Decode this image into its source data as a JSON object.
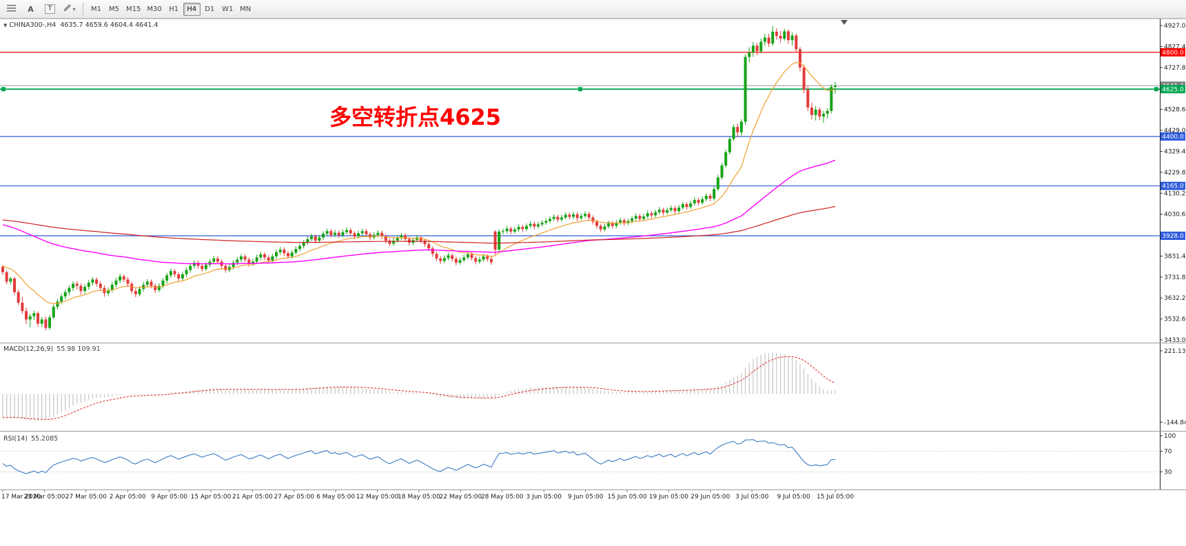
{
  "toolbar": {
    "buttons": [
      {
        "name": "indicators",
        "icon": "hamburger-icon"
      },
      {
        "name": "cursor",
        "label": "A"
      },
      {
        "name": "text",
        "label": "T"
      },
      {
        "name": "draw",
        "icon": "pencil-icon"
      }
    ],
    "timeframes": [
      "M1",
      "M5",
      "M15",
      "M30",
      "H1",
      "H4",
      "D1",
      "W1",
      "MN"
    ],
    "active_timeframe": "H4"
  },
  "chart_data": {
    "type": "candlestick",
    "header": {
      "symbol": "CHINA300-,H4",
      "ohlc": "4635.7 4659.6 4604.4 4641.4"
    },
    "annotation": {
      "text": "多空转折点4625",
      "color": "#FF0000"
    },
    "colors": {
      "up": "#17a317",
      "down": "#e23b3b",
      "bid_line": "#9a9a9a",
      "scale_text": "#1a1a1a"
    },
    "ylim": [
      3420,
      4957
    ],
    "price_ticks": [
      "4927.0",
      "4827.4",
      "4727.8",
      "4628.2",
      "4528.6",
      "4429.0",
      "4329.4",
      "4229.8",
      "4130.2",
      "4030.6",
      "3931.0",
      "3831.4",
      "3731.8",
      "3632.2",
      "3532.6",
      "3433.0"
    ],
    "levels": [
      {
        "price": 4800.0,
        "label": "4800.0",
        "color": "#ff0000",
        "selected": false
      },
      {
        "price": 4625.0,
        "label": "4625.0",
        "color": "#00a651",
        "selected": true
      },
      {
        "price": 4400.0,
        "label": "4400.0",
        "color": "#2e5bda",
        "selected": false
      },
      {
        "price": 4165.0,
        "label": "4165.0",
        "color": "#2e5bda",
        "selected": false
      },
      {
        "price": 3928.0,
        "label": "3928.0",
        "color": "#2e5bda",
        "selected": false
      }
    ],
    "bid": {
      "price": 4641.4,
      "label": "4641.4",
      "badge_color": "#7f7f7f"
    },
    "moving_averages": [
      {
        "name": "fast-ma",
        "period": 16,
        "init": 3790,
        "color": "#f0a030",
        "width": 1.2
      },
      {
        "name": "mid-ma",
        "period": 100,
        "init": 3985,
        "color": "#ff00ff",
        "width": 1.4
      },
      {
        "name": "slow-ma",
        "period": 300,
        "init": 4005,
        "color": "#cc2222",
        "width": 1.2
      }
    ],
    "time_labels": [
      "17 Mar 2020",
      "23 Mar 05:00",
      "27 Mar 05:00",
      "2 Apr 05:00",
      "9 Apr 05:00",
      "15 Apr 05:00",
      "21 Apr 05:00",
      "27 Apr 05:00",
      "6 May 05:00",
      "12 May 05:00",
      "18 May 05:00",
      "22 May 05:00",
      "28 May 05:00",
      "3 Jun 05:00",
      "9 Jun 05:00",
      "15 Jun 05:00",
      "19 Jun 05:00",
      "29 Jun 05:00",
      "3 Jul 05:00",
      "9 Jul 05:00",
      "15 Jul 05:00"
    ],
    "candles": [
      [
        3780,
        3790,
        3742,
        3755
      ],
      [
        3755,
        3762,
        3698,
        3710
      ],
      [
        3710,
        3732,
        3695,
        3725
      ],
      [
        3725,
        3732,
        3648,
        3660
      ],
      [
        3660,
        3672,
        3598,
        3610
      ],
      [
        3610,
        3638,
        3558,
        3570
      ],
      [
        3570,
        3588,
        3508,
        3530
      ],
      [
        3530,
        3558,
        3492,
        3545
      ],
      [
        3545,
        3572,
        3528,
        3560
      ],
      [
        3560,
        3568,
        3496,
        3510
      ],
      [
        3510,
        3542,
        3495,
        3530
      ],
      [
        3530,
        3545,
        3478,
        3490
      ],
      [
        3490,
        3552,
        3482,
        3540
      ],
      [
        3540,
        3602,
        3532,
        3590
      ],
      [
        3590,
        3628,
        3578,
        3615
      ],
      [
        3615,
        3652,
        3602,
        3640
      ],
      [
        3640,
        3672,
        3625,
        3660
      ],
      [
        3660,
        3692,
        3645,
        3680
      ],
      [
        3680,
        3712,
        3665,
        3700
      ],
      [
        3700,
        3712,
        3672,
        3690
      ],
      [
        3690,
        3702,
        3648,
        3665
      ],
      [
        3665,
        3698,
        3652,
        3685
      ],
      [
        3685,
        3718,
        3672,
        3705
      ],
      [
        3705,
        3732,
        3692,
        3720
      ],
      [
        3720,
        3730,
        3685,
        3700
      ],
      [
        3700,
        3712,
        3665,
        3680
      ],
      [
        3680,
        3692,
        3638,
        3655
      ],
      [
        3655,
        3682,
        3642,
        3670
      ],
      [
        3670,
        3708,
        3658,
        3695
      ],
      [
        3695,
        3728,
        3682,
        3715
      ],
      [
        3715,
        3748,
        3702,
        3735
      ],
      [
        3735,
        3745,
        3708,
        3720
      ],
      [
        3720,
        3732,
        3685,
        3700
      ],
      [
        3700,
        3710,
        3652,
        3665
      ],
      [
        3665,
        3678,
        3636,
        3650
      ],
      [
        3650,
        3688,
        3640,
        3675
      ],
      [
        3675,
        3708,
        3662,
        3695
      ],
      [
        3695,
        3722,
        3682,
        3710
      ],
      [
        3710,
        3720,
        3678,
        3690
      ],
      [
        3690,
        3702,
        3656,
        3670
      ],
      [
        3670,
        3702,
        3660,
        3690
      ],
      [
        3690,
        3728,
        3678,
        3715
      ],
      [
        3715,
        3752,
        3702,
        3740
      ],
      [
        3740,
        3772,
        3728,
        3760
      ],
      [
        3760,
        3770,
        3732,
        3745
      ],
      [
        3745,
        3755,
        3712,
        3725
      ],
      [
        3725,
        3758,
        3715,
        3745
      ],
      [
        3745,
        3778,
        3732,
        3765
      ],
      [
        3765,
        3798,
        3752,
        3785
      ],
      [
        3785,
        3812,
        3772,
        3800
      ],
      [
        3800,
        3810,
        3772,
        3785
      ],
      [
        3785,
        3795,
        3758,
        3770
      ],
      [
        3770,
        3802,
        3760,
        3790
      ],
      [
        3790,
        3818,
        3778,
        3805
      ],
      [
        3805,
        3832,
        3792,
        3820
      ],
      [
        3820,
        3830,
        3792,
        3805
      ],
      [
        3805,
        3815,
        3772,
        3785
      ],
      [
        3785,
        3795,
        3752,
        3765
      ],
      [
        3765,
        3792,
        3755,
        3780
      ],
      [
        3780,
        3812,
        3768,
        3800
      ],
      [
        3800,
        3828,
        3788,
        3815
      ],
      [
        3815,
        3842,
        3802,
        3830
      ],
      [
        3830,
        3840,
        3802,
        3815
      ],
      [
        3815,
        3825,
        3782,
        3795
      ],
      [
        3795,
        3818,
        3785,
        3805
      ],
      [
        3805,
        3838,
        3795,
        3825
      ],
      [
        3825,
        3852,
        3812,
        3840
      ],
      [
        3840,
        3850,
        3812,
        3825
      ],
      [
        3825,
        3835,
        3798,
        3810
      ],
      [
        3810,
        3842,
        3800,
        3830
      ],
      [
        3830,
        3862,
        3818,
        3850
      ],
      [
        3850,
        3875,
        3838,
        3862
      ],
      [
        3862,
        3872,
        3832,
        3845
      ],
      [
        3845,
        3855,
        3818,
        3830
      ],
      [
        3830,
        3860,
        3820,
        3848
      ],
      [
        3848,
        3878,
        3838,
        3865
      ],
      [
        3865,
        3892,
        3855,
        3880
      ],
      [
        3880,
        3908,
        3868,
        3895
      ],
      [
        3895,
        3925,
        3885,
        3912
      ],
      [
        3912,
        3938,
        3902,
        3925
      ],
      [
        3925,
        3935,
        3892,
        3905
      ],
      [
        3905,
        3932,
        3895,
        3920
      ],
      [
        3920,
        3950,
        3908,
        3938
      ],
      [
        3938,
        3962,
        3928,
        3950
      ],
      [
        3950,
        3960,
        3920,
        3932
      ],
      [
        3932,
        3955,
        3922,
        3942
      ],
      [
        3942,
        3952,
        3918,
        3930
      ],
      [
        3930,
        3958,
        3920,
        3945
      ],
      [
        3945,
        3968,
        3935,
        3955
      ],
      [
        3955,
        3965,
        3928,
        3940
      ],
      [
        3940,
        3950,
        3912,
        3925
      ],
      [
        3925,
        3952,
        3915,
        3940
      ],
      [
        3940,
        3962,
        3928,
        3950
      ],
      [
        3950,
        3960,
        3922,
        3935
      ],
      [
        3935,
        3945,
        3908,
        3920
      ],
      [
        3920,
        3945,
        3910,
        3932
      ],
      [
        3932,
        3955,
        3922,
        3942
      ],
      [
        3942,
        3952,
        3912,
        3925
      ],
      [
        3925,
        3935,
        3892,
        3905
      ],
      [
        3905,
        3915,
        3878,
        3890
      ],
      [
        3890,
        3918,
        3880,
        3905
      ],
      [
        3905,
        3930,
        3895,
        3918
      ],
      [
        3918,
        3942,
        3908,
        3930
      ],
      [
        3930,
        3940,
        3900,
        3912
      ],
      [
        3912,
        3922,
        3882,
        3895
      ],
      [
        3895,
        3920,
        3885,
        3908
      ],
      [
        3908,
        3932,
        3898,
        3920
      ],
      [
        3920,
        3930,
        3892,
        3905
      ],
      [
        3905,
        3915,
        3875,
        3888
      ],
      [
        3888,
        3898,
        3855,
        3868
      ],
      [
        3868,
        3878,
        3828,
        3842
      ],
      [
        3842,
        3852,
        3808,
        3820
      ],
      [
        3820,
        3832,
        3795,
        3808
      ],
      [
        3808,
        3835,
        3798,
        3822
      ],
      [
        3822,
        3848,
        3812,
        3835
      ],
      [
        3835,
        3845,
        3805,
        3818
      ],
      [
        3818,
        3828,
        3788,
        3800
      ],
      [
        3800,
        3825,
        3790,
        3812
      ],
      [
        3812,
        3838,
        3802,
        3825
      ],
      [
        3825,
        3852,
        3815,
        3840
      ],
      [
        3840,
        3850,
        3810,
        3822
      ],
      [
        3822,
        3832,
        3792,
        3805
      ],
      [
        3805,
        3828,
        3795,
        3815
      ],
      [
        3815,
        3842,
        3805,
        3830
      ],
      [
        3830,
        3840,
        3805,
        3818
      ],
      [
        3818,
        3828,
        3790,
        3802
      ],
      [
        3948,
        3955,
        3838,
        3862
      ],
      [
        3862,
        3958,
        3852,
        3948
      ],
      [
        3948,
        3962,
        3935,
        3950
      ],
      [
        3950,
        3975,
        3940,
        3962
      ],
      [
        3962,
        3972,
        3935,
        3948
      ],
      [
        3948,
        3970,
        3938,
        3958
      ],
      [
        3958,
        3982,
        3948,
        3970
      ],
      [
        3970,
        3980,
        3946,
        3960
      ],
      [
        3960,
        3988,
        3950,
        3975
      ],
      [
        3975,
        3998,
        3965,
        3985
      ],
      [
        3985,
        3995,
        3958,
        3972
      ],
      [
        3972,
        3995,
        3962,
        3982
      ],
      [
        3982,
        4002,
        3972,
        3990
      ],
      [
        3990,
        4010,
        3980,
        3998
      ],
      [
        3998,
        4020,
        3988,
        4008
      ],
      [
        4008,
        4030,
        3998,
        4018
      ],
      [
        4018,
        4028,
        3992,
        4005
      ],
      [
        4005,
        4028,
        3995,
        4015
      ],
      [
        4015,
        4040,
        4005,
        4028
      ],
      [
        4028,
        4038,
        4005,
        4018
      ],
      [
        4018,
        4042,
        4008,
        4030
      ],
      [
        4030,
        4040,
        3998,
        4012
      ],
      [
        4012,
        4035,
        4002,
        4022
      ],
      [
        4022,
        4045,
        4012,
        4032
      ],
      [
        4032,
        4042,
        4002,
        4015
      ],
      [
        4015,
        4025,
        3982,
        3995
      ],
      [
        3995,
        4005,
        3962,
        3975
      ],
      [
        3975,
        3985,
        3945,
        3958
      ],
      [
        3958,
        3985,
        3948,
        3972
      ],
      [
        3972,
        4000,
        3962,
        3988
      ],
      [
        3988,
        3998,
        3962,
        3975
      ],
      [
        3975,
        4002,
        3965,
        3990
      ],
      [
        3990,
        4015,
        3980,
        4002
      ],
      [
        4002,
        4012,
        3975,
        3988
      ],
      [
        3988,
        4010,
        3978,
        3998
      ],
      [
        3998,
        4022,
        3988,
        4010
      ],
      [
        4010,
        4035,
        4000,
        4022
      ],
      [
        4022,
        4032,
        3995,
        4008
      ],
      [
        4008,
        4032,
        3998,
        4020
      ],
      [
        4020,
        4048,
        4010,
        4035
      ],
      [
        4035,
        4045,
        4012,
        4025
      ],
      [
        4025,
        4052,
        4015,
        4040
      ],
      [
        4040,
        4065,
        4030,
        4052
      ],
      [
        4052,
        4062,
        4025,
        4038
      ],
      [
        4038,
        4062,
        4028,
        4050
      ],
      [
        4050,
        4072,
        4040,
        4060
      ],
      [
        4060,
        4070,
        4032,
        4045
      ],
      [
        4045,
        4075,
        4035,
        4062
      ],
      [
        4062,
        4090,
        4052,
        4078
      ],
      [
        4078,
        4088,
        4052,
        4065
      ],
      [
        4065,
        4095,
        4055,
        4082
      ],
      [
        4082,
        4110,
        4072,
        4098
      ],
      [
        4098,
        4108,
        4072,
        4085
      ],
      [
        4085,
        4115,
        4075,
        4102
      ],
      [
        4102,
        4130,
        4092,
        4118
      ],
      [
        4118,
        4128,
        4092,
        4105
      ],
      [
        4105,
        4162,
        4095,
        4150
      ],
      [
        4150,
        4218,
        4140,
        4205
      ],
      [
        4205,
        4275,
        4195,
        4262
      ],
      [
        4262,
        4338,
        4252,
        4325
      ],
      [
        4325,
        4400,
        4315,
        4388
      ],
      [
        4388,
        4458,
        4378,
        4445
      ],
      [
        4445,
        4462,
        4395,
        4420
      ],
      [
        4420,
        4482,
        4405,
        4470
      ],
      [
        4470,
        4790,
        4455,
        4778
      ],
      [
        4778,
        4825,
        4752,
        4800
      ],
      [
        4800,
        4850,
        4778,
        4832
      ],
      [
        4832,
        4845,
        4786,
        4805
      ],
      [
        4805,
        4865,
        4795,
        4850
      ],
      [
        4850,
        4888,
        4832,
        4870
      ],
      [
        4870,
        4888,
        4826,
        4842
      ],
      [
        4842,
        4925,
        4832,
        4898
      ],
      [
        4898,
        4915,
        4860,
        4878
      ],
      [
        4878,
        4902,
        4846,
        4865
      ],
      [
        4865,
        4912,
        4855,
        4900
      ],
      [
        4900,
        4908,
        4840,
        4858
      ],
      [
        4858,
        4895,
        4832,
        4880
      ],
      [
        4880,
        4888,
        4798,
        4815
      ],
      [
        4815,
        4825,
        4710,
        4728
      ],
      [
        4728,
        4742,
        4606,
        4622
      ],
      [
        4622,
        4640,
        4520,
        4538
      ],
      [
        4538,
        4562,
        4480,
        4502
      ],
      [
        4502,
        4545,
        4476,
        4528
      ],
      [
        4528,
        4540,
        4478,
        4495
      ],
      [
        4495,
        4522,
        4466,
        4508
      ],
      [
        4508,
        4535,
        4486,
        4522
      ],
      [
        4522,
        4648,
        4510,
        4636
      ],
      [
        4635.7,
        4659.6,
        4604.4,
        4641.4
      ]
    ]
  },
  "macd": {
    "label": "MACD(12,26,9)",
    "values_text": "55.98 109.91",
    "fast": 12,
    "slow": 26,
    "signal": 9,
    "init_fast": 3830,
    "init_slow": 3955,
    "hist_color": "#c4c4c4",
    "signal_color": "#e02020",
    "ylim": [
      -190,
      260
    ],
    "scale_labels": [
      "221.13",
      "-144.84"
    ]
  },
  "rsi": {
    "label": "RSI(14)",
    "value_text": "55.2085",
    "period": 14,
    "init_gain": 12,
    "init_loss": 14,
    "color": "#3a78c3",
    "levels": [
      70,
      30
    ],
    "ylim": [
      -4,
      108
    ],
    "scale_labels": [
      "100",
      "70",
      "30"
    ]
  }
}
